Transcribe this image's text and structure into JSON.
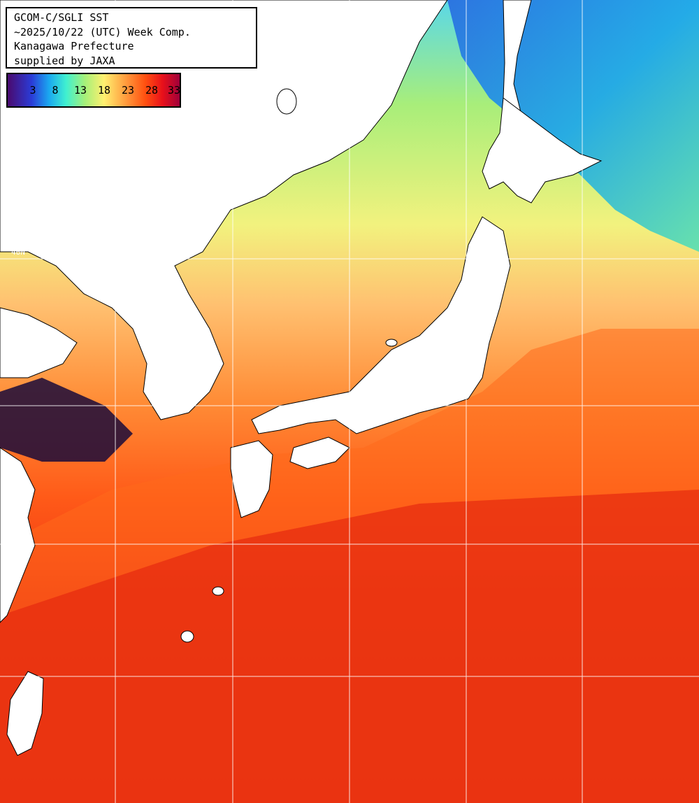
{
  "title_box": {
    "line1": "GCOM-C/SGLI SST",
    "line2": "~2025/10/22 (UTC) Week Comp.",
    "line3": "Kanagawa Prefecture",
    "line4": "supplied by JAXA"
  },
  "color_scale": {
    "labels": [
      "3",
      "8",
      "13",
      "18",
      "23",
      "28",
      "33"
    ],
    "colors": [
      "#4a0a6e",
      "#2a3cd8",
      "#1aa8f0",
      "#40f0d0",
      "#a6f078",
      "#fff070",
      "#ffa040",
      "#ff5010",
      "#e8101a",
      "#a0003a"
    ]
  },
  "grid": {
    "latitude_label": "40N"
  },
  "colors": {
    "warm_sea": "#e8280e",
    "mid_sea": "#ff7a20",
    "cool_sea": "#f6f47a",
    "cold_sea": "#8ee878",
    "land": "#ffffff",
    "coast": "#000000",
    "grid": "#ffffff"
  }
}
